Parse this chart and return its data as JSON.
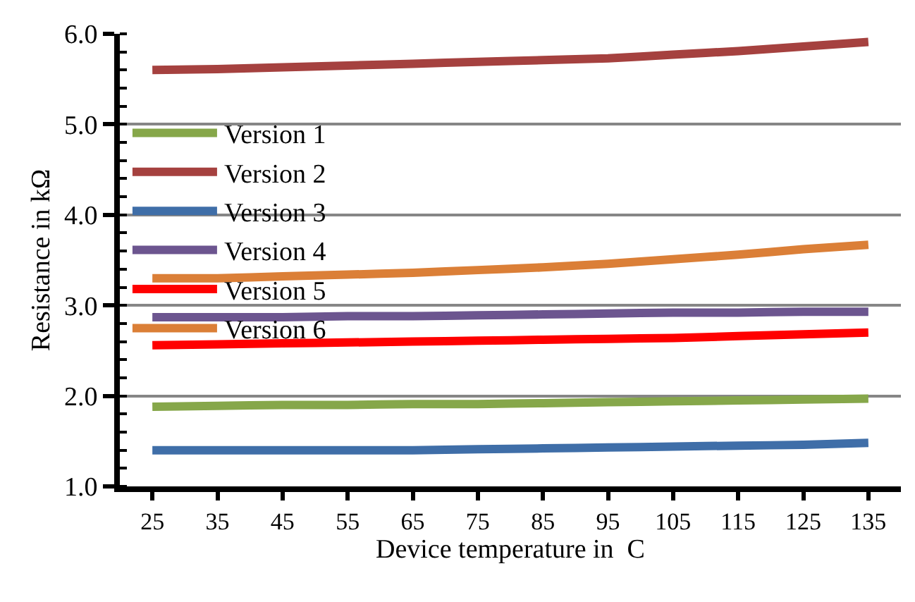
{
  "chart_data": {
    "type": "line",
    "xlabel": "Device temperature in  C",
    "ylabel": "Resistance in kΩ",
    "categories": [
      "25",
      "35",
      "45",
      "55",
      "65",
      "75",
      "85",
      "95",
      "105",
      "115",
      "125",
      "135"
    ],
    "series": [
      {
        "name": "Version 1",
        "color": "#86a74a",
        "values": [
          1.88,
          1.89,
          1.9,
          1.9,
          1.91,
          1.91,
          1.92,
          1.93,
          1.94,
          1.95,
          1.96,
          1.97
        ]
      },
      {
        "name": "Version 2",
        "color": "#a5413f",
        "values": [
          5.6,
          5.61,
          5.63,
          5.65,
          5.67,
          5.69,
          5.71,
          5.73,
          5.77,
          5.81,
          5.86,
          5.91
        ]
      },
      {
        "name": "Version 3",
        "color": "#3f6ea8",
        "values": [
          1.4,
          1.4,
          1.4,
          1.4,
          1.4,
          1.41,
          1.42,
          1.43,
          1.44,
          1.45,
          1.46,
          1.48
        ]
      },
      {
        "name": "Version 4",
        "color": "#6c558f",
        "values": [
          2.87,
          2.87,
          2.87,
          2.88,
          2.88,
          2.89,
          2.9,
          2.91,
          2.92,
          2.92,
          2.93,
          2.93
        ]
      },
      {
        "name": "Version 5",
        "color": "#ff0000",
        "values": [
          2.56,
          2.57,
          2.58,
          2.59,
          2.6,
          2.61,
          2.62,
          2.63,
          2.64,
          2.66,
          2.68,
          2.7
        ]
      },
      {
        "name": "Version 6",
        "color": "#db7f37",
        "values": [
          3.3,
          3.3,
          3.32,
          3.34,
          3.36,
          3.39,
          3.42,
          3.46,
          3.51,
          3.56,
          3.62,
          3.67
        ]
      }
    ],
    "ylim": [
      1.0,
      6.0
    ],
    "yticks": [
      {
        "value": 1.0,
        "label": "1.0"
      },
      {
        "value": 2.0,
        "label": "2.0"
      },
      {
        "value": 3.0,
        "label": "3.0"
      },
      {
        "value": 4.0,
        "label": "4.0"
      },
      {
        "value": 5.0,
        "label": "5.0"
      },
      {
        "value": 6.0,
        "label": "6.0"
      }
    ],
    "grid": "y",
    "legend": "top",
    "marker": "none",
    "line_style": "solid"
  }
}
